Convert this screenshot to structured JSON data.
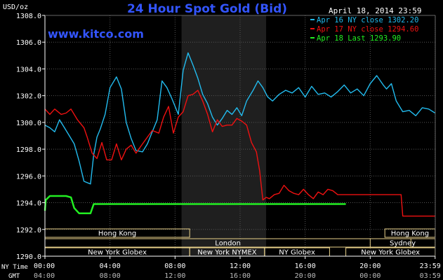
{
  "chart_data": {
    "type": "line",
    "title": "24 Hour Spot Gold (Bid)",
    "date_label": "April 18, 2014 23:59",
    "site": "www.kitco.com",
    "ylabel": "USD/oz",
    "ylim": [
      1290,
      1308
    ],
    "yticks": [
      "1308.0",
      "1306.0",
      "1304.0",
      "1302.0",
      "1300.0",
      "1298.0",
      "1296.0",
      "1294.0",
      "1292.0",
      "1290.0"
    ],
    "x_unit": "hours (NY Time)",
    "xlim": [
      0,
      24
    ],
    "xaxis_ny_label": "NY Time",
    "xaxis_gmt_label": "GMT",
    "xticks_ny": [
      "00:00",
      "04:00",
      "08:00",
      "12:00",
      "16:00",
      "20:00",
      "23:59"
    ],
    "xticks_gmt": [
      "04:00",
      "08:00",
      "12:00",
      "16:00",
      "20:00",
      "00:00",
      "03:59"
    ],
    "shaded_region": [
      8.4,
      13.6
    ],
    "grid": true,
    "colors": {
      "title": "#3355ff",
      "apr16": "#22bbee",
      "apr17": "#ee1111",
      "apr18": "#22ee22",
      "session_box": "#e8d18a"
    },
    "legend": [
      {
        "key": "apr16",
        "label": "Apr 16 NY close 1302.20"
      },
      {
        "key": "apr17",
        "label": "Apr 17 NY close 1294.60"
      },
      {
        "key": "apr18",
        "label": "Apr 18 Last 1293.90"
      }
    ],
    "series": [
      {
        "key": "apr16",
        "x": [
          0,
          0.3,
          0.6,
          0.9,
          1.2,
          1.5,
          1.8,
          2.1,
          2.4,
          2.8,
          3.0,
          3.2,
          3.4,
          3.7,
          4.0,
          4.4,
          4.7,
          5.0,
          5.3,
          5.6,
          6.0,
          6.3,
          6.6,
          6.9,
          7.2,
          7.5,
          7.8,
          8.2,
          8.5,
          8.8,
          9.1,
          9.4,
          9.7,
          10.0,
          10.3,
          10.6,
          10.9,
          11.2,
          11.5,
          11.8,
          12.1,
          12.4,
          12.8,
          13.1,
          13.4,
          13.7,
          14.0,
          14.4,
          14.8,
          15.2,
          15.6,
          16.0,
          16.4,
          16.8,
          17.2,
          17.6,
          18.0,
          18.4,
          18.8,
          19.2,
          19.6,
          20.0,
          20.4,
          20.8,
          21.0,
          21.3,
          21.6,
          22.0,
          22.4,
          22.8,
          23.2,
          23.6,
          23.99
        ],
        "y": [
          1299.8,
          1299.6,
          1299.3,
          1300.2,
          1299.6,
          1299.0,
          1298.4,
          1297.1,
          1295.6,
          1295.4,
          1297.6,
          1298.9,
          1299.5,
          1300.6,
          1302.6,
          1303.4,
          1302.5,
          1300.0,
          1298.8,
          1297.9,
          1297.8,
          1298.4,
          1299.3,
          1300.2,
          1303.1,
          1302.6,
          1301.8,
          1300.6,
          1303.9,
          1305.2,
          1304.3,
          1303.3,
          1302.1,
          1301.4,
          1300.4,
          1299.8,
          1300.3,
          1300.9,
          1300.6,
          1301.1,
          1300.5,
          1301.6,
          1302.4,
          1303.1,
          1302.6,
          1301.9,
          1301.6,
          1302.1,
          1302.4,
          1302.2,
          1302.6,
          1301.9,
          1302.7,
          1302.1,
          1302.2,
          1301.9,
          1302.3,
          1302.8,
          1302.2,
          1302.5,
          1302.0,
          1302.9,
          1303.5,
          1302.8,
          1302.5,
          1302.9,
          1301.6,
          1300.8,
          1300.9,
          1300.5,
          1301.1,
          1301.0,
          1300.7
        ]
      },
      {
        "key": "apr17",
        "x": [
          0,
          0.3,
          0.6,
          1.0,
          1.3,
          1.6,
          2.0,
          2.4,
          2.6,
          2.9,
          3.2,
          3.5,
          3.8,
          4.1,
          4.4,
          4.7,
          5.0,
          5.3,
          5.6,
          6.0,
          6.3,
          6.6,
          7.0,
          7.3,
          7.6,
          7.9,
          8.2,
          8.5,
          8.8,
          9.1,
          9.4,
          9.7,
          10.0,
          10.3,
          10.6,
          10.9,
          11.2,
          11.5,
          11.8,
          12.1,
          12.4,
          12.7,
          13.0,
          13.2,
          13.4,
          13.6,
          13.8,
          14.1,
          14.4,
          14.7,
          15.0,
          15.3,
          15.6,
          15.9,
          16.2,
          16.5,
          16.8,
          17.1,
          17.4,
          17.7,
          18.0,
          18.5,
          19.0,
          19.5,
          20.0,
          20.5,
          21.0,
          21.5,
          21.9,
          22.0,
          22.5,
          23.0,
          23.5,
          23.99
        ],
        "y": [
          1301.0,
          1300.6,
          1301.0,
          1300.6,
          1300.7,
          1301.0,
          1300.2,
          1299.6,
          1298.9,
          1297.7,
          1297.3,
          1298.5,
          1297.2,
          1297.2,
          1298.4,
          1297.2,
          1298.0,
          1298.3,
          1297.7,
          1298.4,
          1298.9,
          1299.4,
          1299.2,
          1300.4,
          1301.2,
          1299.2,
          1300.4,
          1300.8,
          1302.0,
          1302.1,
          1302.4,
          1301.6,
          1300.6,
          1299.3,
          1300.2,
          1299.7,
          1299.8,
          1299.8,
          1300.3,
          1300.1,
          1299.8,
          1298.5,
          1297.8,
          1296.4,
          1294.2,
          1294.4,
          1294.3,
          1294.6,
          1294.7,
          1295.3,
          1294.9,
          1294.7,
          1294.6,
          1295.0,
          1294.6,
          1294.3,
          1294.8,
          1294.6,
          1295.0,
          1294.9,
          1294.6,
          1294.6,
          1294.6,
          1294.6,
          1294.6,
          1294.6,
          1294.6,
          1294.6,
          1294.6,
          1293.0,
          1293.0,
          1293.0,
          1293.0,
          1293.0
        ]
      },
      {
        "key": "apr18",
        "x": [
          0,
          0.05,
          0.3,
          0.9,
          1.3,
          1.6,
          1.8,
          2.1,
          2.5,
          2.8,
          3.0,
          3.2,
          4.0,
          6.0,
          8.0,
          10.0,
          12.0,
          14.0,
          16.0,
          18.0,
          18.5
        ],
        "y": [
          1293.4,
          1294.2,
          1294.5,
          1294.5,
          1294.5,
          1294.4,
          1293.6,
          1293.2,
          1293.2,
          1293.2,
          1293.9,
          1293.9,
          1293.9,
          1293.9,
          1293.9,
          1293.9,
          1293.9,
          1293.9,
          1293.9,
          1293.9,
          1293.9
        ]
      }
    ],
    "sessions": [
      {
        "name": "Hong Kong",
        "start": 0,
        "end": 8.9,
        "row": 0
      },
      {
        "name": "Hong Kong",
        "start": 20.9,
        "end": 23.99,
        "row": 0
      },
      {
        "name": "London",
        "start": 0,
        "end": 22.5,
        "row": 1
      },
      {
        "name": "Sydney",
        "start": 20.0,
        "end": 23.99,
        "row": 1
      },
      {
        "name": "New York Globex",
        "start": 0,
        "end": 8.9,
        "row": 2
      },
      {
        "name": "New York NYMEX",
        "start": 8.9,
        "end": 13.5,
        "row": 2
      },
      {
        "name": "NY Globex",
        "start": 13.5,
        "end": 17.5,
        "row": 2
      },
      {
        "name": "New York Globex",
        "start": 18.5,
        "end": 23.99,
        "row": 2
      }
    ]
  }
}
